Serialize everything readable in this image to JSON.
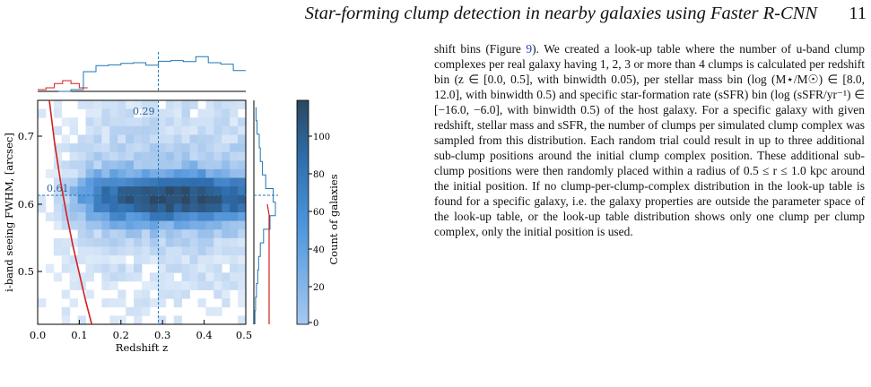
{
  "header": {
    "title": "Star-forming clump detection in nearby galaxies using Faster R-CNN",
    "page_number": "11"
  },
  "figure": {
    "vline_label": "0.29",
    "hline_label": "0.61",
    "colorbar_label": "Count of galaxies",
    "colorbar_ticks": [
      "0",
      "20",
      "40",
      "60",
      "80",
      "100"
    ]
  },
  "chart_data": {
    "type": "heatmap",
    "title": "",
    "xlabel": "Redshift z",
    "ylabel": "i-band seeing FWHM, [arcsec]",
    "xlim": [
      0.0,
      0.5
    ],
    "ylim": [
      0.42,
      0.75
    ],
    "x_ticks": [
      "0.0",
      "0.1",
      "0.2",
      "0.3",
      "0.4",
      "0.5"
    ],
    "y_ticks": [
      "0.5",
      "0.6",
      "0.7"
    ],
    "color_range": [
      0,
      120
    ],
    "colorbar_ticks": [
      0,
      20,
      40,
      60,
      80,
      100
    ],
    "colormap": [
      "#e9f1fb",
      "#a9c9ee",
      "#5b9cdf",
      "#2f6fb0",
      "#2d4863"
    ],
    "reference_lines": [
      {
        "axis": "x",
        "value": 0.29,
        "label": "0.29",
        "style": "dashed"
      },
      {
        "axis": "y",
        "value": 0.61,
        "label": "0.61",
        "style": "dashed"
      }
    ],
    "selection_curve": {
      "color": "#d42020",
      "x": [
        0.028,
        0.04,
        0.055,
        0.07,
        0.085,
        0.1,
        0.115,
        0.13
      ],
      "y": [
        0.75,
        0.69,
        0.63,
        0.58,
        0.535,
        0.495,
        0.455,
        0.42
      ]
    },
    "heatmap_center": {
      "x": 0.33,
      "y": 0.605
    },
    "marginal_x": {
      "color": "#1f77b4",
      "bins": [
        0.05,
        0.08,
        0.11,
        0.14,
        0.17,
        0.2,
        0.23,
        0.26,
        0.29,
        0.32,
        0.35,
        0.38,
        0.41,
        0.44,
        0.47,
        0.5
      ],
      "values": [
        0,
        0.05,
        0.55,
        0.72,
        0.74,
        0.78,
        0.8,
        0.73,
        0.84,
        0.86,
        0.83,
        0.97,
        0.8,
        0.76,
        0.58,
        0.46
      ]
    },
    "marginal_x_red": {
      "color": "#d42020",
      "bins": [
        0.0,
        0.02,
        0.04,
        0.06,
        0.08,
        0.1,
        0.12
      ],
      "values": [
        0.05,
        0.1,
        0.22,
        0.3,
        0.22,
        0.1,
        0
      ]
    },
    "marginal_y": {
      "color": "#1f77b4",
      "bins": [
        0.74,
        0.72,
        0.7,
        0.68,
        0.66,
        0.64,
        0.62,
        0.6,
        0.58,
        0.56,
        0.54,
        0.52,
        0.5,
        0.48,
        0.46,
        0.44,
        0.42
      ],
      "values": [
        0.1,
        0.15,
        0.25,
        0.3,
        0.4,
        0.55,
        0.9,
        1.0,
        0.75,
        0.45,
        0.3,
        0.22,
        0.18,
        0.12,
        0.08,
        0.05,
        0.03
      ]
    }
  },
  "body": {
    "p1a": "shift bins (Figure ",
    "fig_ref": "9",
    "p1b": "). We created a look-up table where the number of u-band clump complexes per real galaxy having 1, 2, 3 or more than 4 clumps is calculated per redshift bin (z ∈ [0.0, 0.5], with binwidth 0.05), per stellar mass bin (log (M⋆/M☉) ∈ [8.0, 12.0], with binwidth 0.5) and specific star-formation rate (sSFR) bin (log (sSFR/yr⁻¹) ∈ [−16.0, −6.0], with binwidth 0.5) of the host galaxy. For a specific galaxy with given redshift, stellar mass and sSFR, the number of clumps per simulated clump complex was sampled from this distribution. Each random trial could result in up to three additional sub-clump positions around the initial clump complex position. These additional sub-clump positions were then randomly placed within a radius of 0.5 ≤ r ≤ 1.0 kpc around the initial position. If no clump-per-clump-complex distribution in the look-up table is found for a specific galaxy, i.e. the galaxy properties are outside the parameter space of the look-up table, or the look-up table distribution shows only one clump per clump complex, only the initial position is used."
  }
}
